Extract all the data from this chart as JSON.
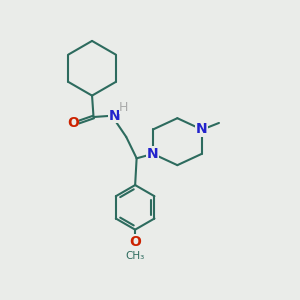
{
  "bg_color": "#eaece9",
  "bond_color": "#2d6b5e",
  "O_color": "#cc2200",
  "N_color": "#2222cc",
  "H_color": "#aaaaaa",
  "linewidth": 1.5,
  "figsize": [
    3.0,
    3.0
  ],
  "dpi": 100,
  "xlim": [
    0,
    10
  ],
  "ylim": [
    0,
    10
  ]
}
